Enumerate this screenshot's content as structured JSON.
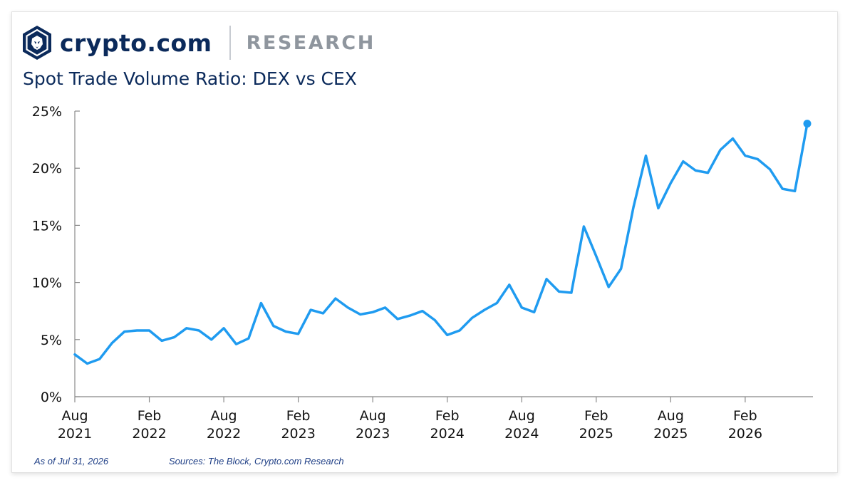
{
  "brand": {
    "name": "crypto.com",
    "section": "RESEARCH",
    "logo_icon": "crypto-com-lion-shield-icon",
    "navy": "#0b2a5b"
  },
  "footer": {
    "as_of": "As of Jul 31, 2026",
    "sources": "Sources: The Block, Crypto.com Research"
  },
  "chart_data": {
    "type": "line",
    "title": "Spot Trade Volume Ratio: DEX vs CEX",
    "xlabel": "",
    "ylabel": "",
    "ylim": [
      0,
      25
    ],
    "grid": false,
    "line_color": "#1f9bf0",
    "y_ticks": [
      "0%",
      "5%",
      "10%",
      "15%",
      "20%",
      "25%"
    ],
    "y_tick_values": [
      0,
      5,
      10,
      15,
      20,
      25
    ],
    "x_ticks": [
      {
        "month": "Aug",
        "year": "2021",
        "date": "2021-08"
      },
      {
        "month": "Feb",
        "year": "2022",
        "date": "2022-02"
      },
      {
        "month": "Aug",
        "year": "2022",
        "date": "2022-08"
      },
      {
        "month": "Feb",
        "year": "2023",
        "date": "2023-02"
      },
      {
        "month": "Aug",
        "year": "2023",
        "date": "2023-08"
      },
      {
        "month": "Feb",
        "year": "2024",
        "date": "2024-02"
      },
      {
        "month": "Aug",
        "year": "2024",
        "date": "2024-08"
      },
      {
        "month": "Feb",
        "year": "2025",
        "date": "2025-02"
      },
      {
        "month": "Aug",
        "year": "2025",
        "date": "2025-08"
      },
      {
        "month": "Feb",
        "year": "2026",
        "date": "2026-02"
      }
    ],
    "x": [
      "2021-08",
      "2021-09",
      "2021-10",
      "2021-11",
      "2021-12",
      "2022-01",
      "2022-02",
      "2022-03",
      "2022-04",
      "2022-05",
      "2022-06",
      "2022-07",
      "2022-08",
      "2022-09",
      "2022-10",
      "2022-11",
      "2022-12",
      "2023-01",
      "2023-02",
      "2023-03",
      "2023-04",
      "2023-05",
      "2023-06",
      "2023-07",
      "2023-08",
      "2023-09",
      "2023-10",
      "2023-11",
      "2023-12",
      "2024-01",
      "2024-02",
      "2024-03",
      "2024-04",
      "2024-05",
      "2024-06",
      "2024-07",
      "2024-08",
      "2024-09",
      "2024-10",
      "2024-11",
      "2024-12",
      "2025-01",
      "2025-02",
      "2025-03",
      "2025-04",
      "2025-05",
      "2025-06",
      "2025-07",
      "2025-08",
      "2025-09",
      "2025-10",
      "2025-11",
      "2025-12",
      "2026-01",
      "2026-02",
      "2026-03",
      "2026-04",
      "2026-05",
      "2026-06",
      "2026-07"
    ],
    "series": [
      {
        "values": [
          3.7,
          2.9,
          3.3,
          4.7,
          5.7,
          5.8,
          5.8,
          4.9,
          5.2,
          6.0,
          5.8,
          5.0,
          6.0,
          4.6,
          5.1,
          8.2,
          6.2,
          5.7,
          5.5,
          7.6,
          7.3,
          8.6,
          7.8,
          7.2,
          7.4,
          7.8,
          6.8,
          7.1,
          7.5,
          6.7,
          5.4,
          5.8,
          6.9,
          7.6,
          8.2,
          9.8,
          7.8,
          7.4,
          10.3,
          9.2,
          9.1,
          14.9,
          12.3,
          9.6,
          11.2,
          16.6,
          21.1,
          16.5,
          18.7,
          20.6,
          19.8,
          19.6,
          21.6,
          22.6,
          21.1,
          20.8,
          19.9,
          18.2,
          18.0,
          23.9
        ]
      }
    ]
  }
}
